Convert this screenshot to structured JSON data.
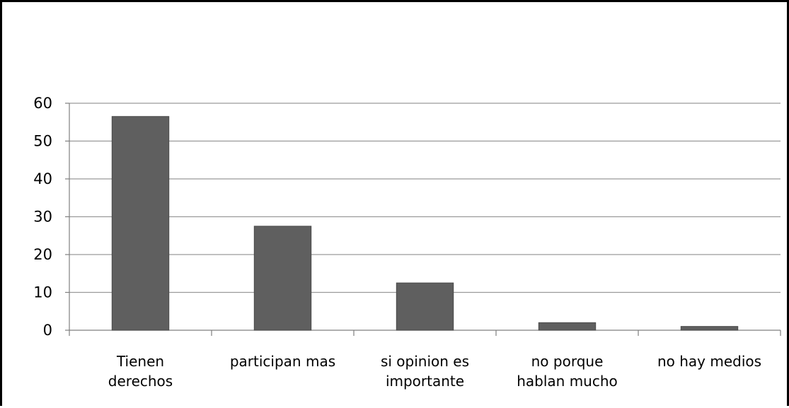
{
  "chart_data": {
    "type": "bar",
    "title": "",
    "xlabel": "",
    "ylabel": "",
    "categories": [
      [
        "Tienen",
        "derechos"
      ],
      [
        "participan mas"
      ],
      [
        "si opinion es",
        "importante"
      ],
      [
        "no porque",
        "hablan mucho"
      ],
      [
        "no hay medios"
      ]
    ],
    "values": [
      56.5,
      27.5,
      12.5,
      2,
      1
    ],
    "ylim": [
      0,
      60
    ],
    "yticks": [
      "0",
      "10",
      "20",
      "30",
      "40",
      "50",
      "60"
    ],
    "grid": true,
    "legend": "none",
    "colors": {
      "bar": "#5f5f5f",
      "bar_edge": "#4a4a4a",
      "gridline": "#9a9a9a",
      "axis": "#7f7f7f",
      "text": "#000000",
      "frame": "#000000"
    }
  }
}
